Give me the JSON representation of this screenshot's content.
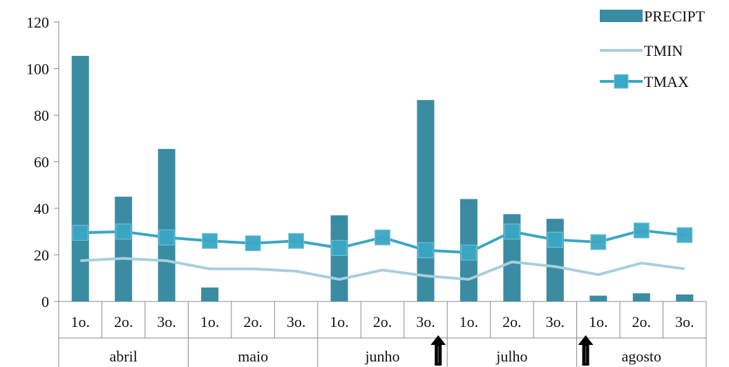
{
  "chart_data": {
    "type": "bar",
    "colors": {
      "precipt": "#3a8ca3",
      "tmin": "#a8cedd",
      "tmax": "#3aa7c4"
    },
    "categories": [
      "1o.",
      "2o.",
      "3o.",
      "1o.",
      "2o.",
      "3o.",
      "1o.",
      "2o.",
      "3o.",
      "1o.",
      "2o.",
      "3o.",
      "1o.",
      "2o.",
      "3o."
    ],
    "groups": [
      "abril",
      "maio",
      "junho",
      "julho",
      "agosto"
    ],
    "ylim": [
      0,
      120
    ],
    "yticks": [
      "0",
      "20",
      "40",
      "60",
      "80",
      "100",
      "120"
    ],
    "series": [
      {
        "name": "PRECIPT",
        "kind": "bar",
        "values": [
          105.5,
          45,
          65.5,
          6,
          0,
          0,
          37,
          0,
          86.5,
          44,
          37.5,
          35.5,
          2.5,
          3.5,
          3
        ]
      },
      {
        "name": "TMIN",
        "kind": "line",
        "values": [
          17.5,
          18.5,
          17.5,
          14,
          14,
          13,
          9.5,
          13.5,
          11,
          9.5,
          17,
          15,
          11.5,
          16.5,
          14
        ]
      },
      {
        "name": "TMAX",
        "kind": "line-marker",
        "values": [
          29.5,
          30,
          27.5,
          26,
          25,
          26,
          23,
          27.5,
          22,
          21,
          30,
          26.5,
          25.5,
          30.5,
          28.5
        ]
      }
    ],
    "arrow_markers": [
      8,
      12
    ]
  }
}
